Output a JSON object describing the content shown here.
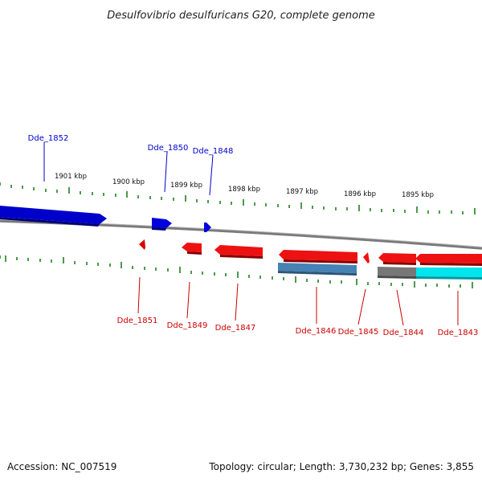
{
  "title": "Desulfovibrio desulfuricans G20, complete genome",
  "footer": {
    "accession": "Accession: NC_007519",
    "info": "Topology: circular; Length: 3,730,232 bp; Genes: 3,855"
  },
  "scale": {
    "units": "kbp",
    "major_ticks": [
      {
        "label": "1901 kbp",
        "kbp": 1901
      },
      {
        "label": "1900 kbp",
        "kbp": 1900
      },
      {
        "label": "1899 kbp",
        "kbp": 1899
      },
      {
        "label": "1898 kbp",
        "kbp": 1898
      },
      {
        "label": "1897 kbp",
        "kbp": 1897
      },
      {
        "label": "1896 kbp",
        "kbp": 1896
      },
      {
        "label": "1895 kbp",
        "kbp": 1895
      }
    ]
  },
  "colors": {
    "forward_strand": "#0000cc",
    "reverse_strand": "#cc0000",
    "tick": "#117711",
    "backbone": "#888888",
    "feature_steelblue": "#4682b4",
    "feature_gray": "#777777",
    "feature_cyan": "#00e5ee"
  },
  "genes": {
    "forward": [
      {
        "name": "Dde_1852"
      },
      {
        "name": "Dde_1850"
      },
      {
        "name": "Dde_1848"
      }
    ],
    "reverse": [
      {
        "name": "Dde_1851"
      },
      {
        "name": "Dde_1849"
      },
      {
        "name": "Dde_1847"
      },
      {
        "name": "Dde_1846"
      },
      {
        "name": "Dde_1845"
      },
      {
        "name": "Dde_1844"
      },
      {
        "name": "Dde_1843"
      }
    ]
  }
}
